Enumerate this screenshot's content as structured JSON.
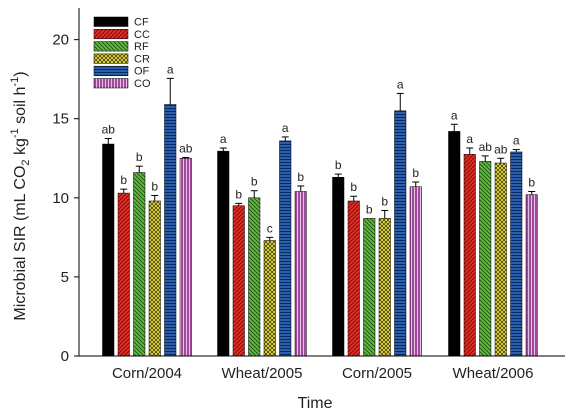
{
  "chart_data": {
    "type": "bar",
    "xlabel": "Time",
    "ylabel": "Microbial SIR (mL CO₂ kg⁻¹ soil h⁻¹)",
    "ylim": [
      0,
      22
    ],
    "yticks": [
      0,
      5,
      10,
      15,
      20
    ],
    "grid": false,
    "legend_position": "top-left",
    "categories": [
      "Corn/2004",
      "Wheat/2005",
      "Corn/2005",
      "Wheat/2006"
    ],
    "series": [
      {
        "name": "CF",
        "color": "#000000",
        "pattern": "solid",
        "values": [
          13.4,
          12.95,
          11.3,
          14.2
        ],
        "errors": [
          0.35,
          0.2,
          0.2,
          0.45
        ],
        "letters": [
          "ab",
          "a",
          "b",
          "a"
        ]
      },
      {
        "name": "CC",
        "color": "#e03127",
        "pattern": "diag-right",
        "values": [
          10.3,
          9.5,
          9.8,
          12.75
        ],
        "errors": [
          0.25,
          0.15,
          0.3,
          0.4
        ],
        "letters": [
          "b",
          "b",
          "b",
          "a"
        ]
      },
      {
        "name": "RF",
        "color": "#69b845",
        "pattern": "diag-left",
        "values": [
          11.6,
          10.0,
          8.7,
          12.3
        ],
        "errors": [
          0.4,
          0.45,
          0.0,
          0.35
        ],
        "letters": [
          "b",
          "b",
          "b",
          "ab"
        ]
      },
      {
        "name": "CR",
        "color": "#f5ec3c",
        "pattern": "crosshatch",
        "values": [
          9.8,
          7.3,
          8.7,
          12.2
        ],
        "errors": [
          0.35,
          0.2,
          0.5,
          0.3
        ],
        "letters": [
          "b",
          "c",
          "b",
          "ab"
        ]
      },
      {
        "name": "OF",
        "color": "#2a5fad",
        "pattern": "horizontal",
        "values": [
          15.9,
          13.6,
          15.5,
          12.9
        ],
        "errors": [
          1.65,
          0.25,
          1.1,
          0.15
        ],
        "letters": [
          "a",
          "a",
          "a",
          "a"
        ]
      },
      {
        "name": "CO",
        "color": "#a04a9e",
        "pattern": "vertical",
        "values": [
          12.5,
          10.4,
          10.7,
          10.2
        ],
        "errors": [
          0.05,
          0.35,
          0.3,
          0.2
        ],
        "letters": [
          "ab",
          "b",
          "b",
          "b"
        ]
      }
    ]
  }
}
